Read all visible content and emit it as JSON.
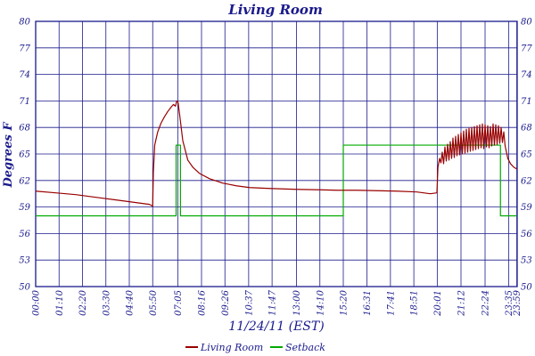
{
  "chart_data": {
    "type": "line",
    "title": "Living Room",
    "xlabel": "11/24/11 (EST)",
    "ylabel": "Degrees F",
    "ylim": [
      50,
      80
    ],
    "y_ticks": [
      50,
      53,
      56,
      59,
      62,
      65,
      68,
      71,
      74,
      77,
      80
    ],
    "x_tick_labels": [
      "00:00",
      "01:10",
      "02:20",
      "03:30",
      "04:40",
      "05:50",
      "07:05",
      "08:16",
      "09:26",
      "10:37",
      "11:47",
      "13:00",
      "14:10",
      "15:20",
      "16:31",
      "17:41",
      "18:51",
      "20:01",
      "21:12",
      "22:24",
      "23:35",
      "23:59"
    ],
    "x_tick_minutes": [
      0,
      70,
      140,
      210,
      280,
      350,
      425,
      496,
      566,
      637,
      707,
      780,
      850,
      920,
      991,
      1061,
      1131,
      1201,
      1272,
      1344,
      1415,
      1439
    ],
    "xlim_minutes": [
      0,
      1440
    ],
    "grid": true,
    "legend_position": "bottom",
    "series": [
      {
        "name": "Living Room",
        "color": "#990000",
        "x_minutes": [
          0,
          60,
          120,
          180,
          240,
          300,
          340,
          350,
          352,
          356,
          365,
          375,
          385,
          395,
          405,
          412,
          418,
          422,
          426,
          432,
          440,
          455,
          470,
          490,
          520,
          560,
          600,
          640,
          700,
          780,
          850,
          900,
          960,
          1020,
          1080,
          1140,
          1180,
          1200,
          1203,
          1208,
          1212,
          1216,
          1220,
          1224,
          1228,
          1232,
          1236,
          1240,
          1244,
          1248,
          1252,
          1256,
          1260,
          1264,
          1268,
          1272,
          1276,
          1280,
          1284,
          1288,
          1292,
          1296,
          1300,
          1304,
          1308,
          1312,
          1316,
          1320,
          1324,
          1328,
          1332,
          1336,
          1340,
          1344,
          1348,
          1352,
          1356,
          1360,
          1364,
          1368,
          1372,
          1376,
          1380,
          1384,
          1388,
          1392,
          1396,
          1400,
          1404,
          1408,
          1412,
          1420,
          1430,
          1439
        ],
        "values": [
          60.8,
          60.6,
          60.4,
          60.1,
          59.8,
          59.5,
          59.3,
          59.1,
          63.0,
          66.0,
          67.5,
          68.5,
          69.2,
          69.8,
          70.3,
          70.6,
          70.4,
          71.0,
          70.8,
          69.0,
          66.5,
          64.3,
          63.5,
          62.8,
          62.2,
          61.7,
          61.4,
          61.2,
          61.1,
          61.0,
          60.95,
          60.9,
          60.9,
          60.85,
          60.8,
          60.7,
          60.5,
          60.6,
          63.5,
          64.5,
          64.0,
          65.2,
          63.9,
          65.8,
          64.2,
          66.1,
          64.3,
          66.4,
          64.5,
          66.8,
          64.6,
          67.0,
          64.8,
          67.2,
          64.9,
          67.4,
          65.0,
          67.6,
          65.1,
          67.8,
          65.2,
          67.9,
          65.3,
          68.0,
          65.4,
          68.1,
          65.5,
          68.2,
          65.6,
          68.3,
          65.7,
          68.4,
          65.6,
          68.3,
          65.8,
          68.2,
          65.7,
          68.1,
          65.9,
          68.4,
          66.0,
          68.3,
          66.1,
          68.2,
          66.2,
          68.0,
          66.3,
          67.5,
          65.9,
          65.2,
          64.5,
          63.9,
          63.5,
          63.3
        ]
      },
      {
        "name": "Setback",
        "color": "#00aa00",
        "x_minutes": [
          0,
          420,
          420,
          433,
          433,
          920,
          920,
          1390,
          1390,
          1439
        ],
        "values": [
          58,
          58,
          66,
          66,
          58,
          58,
          66,
          66,
          58,
          58
        ]
      }
    ]
  }
}
